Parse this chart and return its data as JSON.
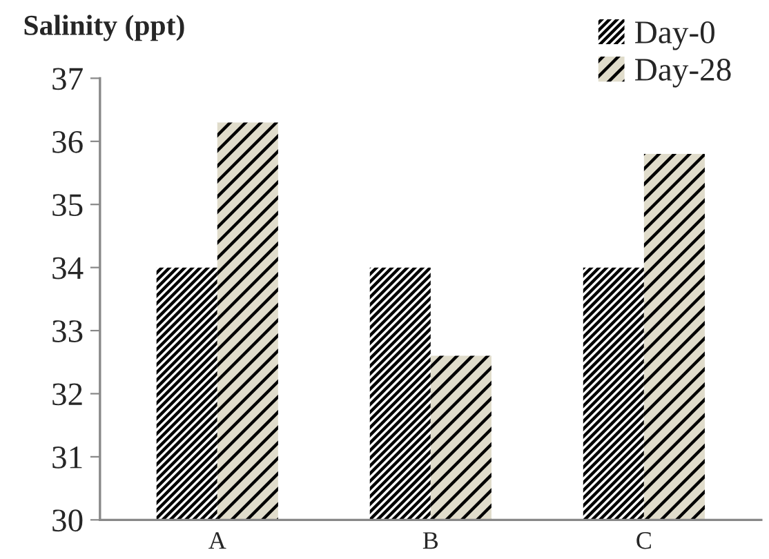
{
  "chart_data": {
    "type": "bar",
    "title": "Salinity (ppt)",
    "categories": [
      "A",
      "B",
      "C"
    ],
    "series": [
      {
        "name": "Day-0",
        "color": "#ffffff",
        "values": [
          34,
          34,
          34
        ]
      },
      {
        "name": "Day-28",
        "color": "#e0dccb",
        "values": [
          36.3,
          32.6,
          35.8
        ]
      }
    ],
    "ylim": [
      30,
      37
    ],
    "yticks": [
      30,
      31,
      32,
      33,
      34,
      35,
      36,
      37
    ],
    "grid": false,
    "legend": "top right"
  }
}
